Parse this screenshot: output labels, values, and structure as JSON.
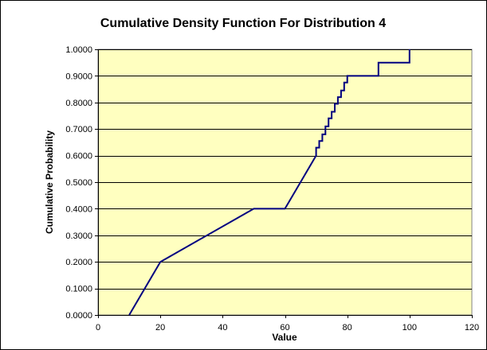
{
  "chart_data": {
    "type": "line",
    "title": "Cumulative Density Function For Distribution 4",
    "xlabel": "Value",
    "ylabel": "Cumulative Probability",
    "xlim": [
      0,
      120
    ],
    "ylim": [
      0,
      1
    ],
    "x_ticks": [
      0,
      20,
      40,
      60,
      80,
      100,
      120
    ],
    "x_tick_labels": [
      "0",
      "20",
      "40",
      "60",
      "80",
      "100",
      "120"
    ],
    "y_ticks": [
      0,
      0.1,
      0.2,
      0.3,
      0.4,
      0.5,
      0.6,
      0.7,
      0.8,
      0.9,
      1.0
    ],
    "y_tick_labels": [
      "0.0000",
      "0.1000",
      "0.2000",
      "0.3000",
      "0.4000",
      "0.5000",
      "0.6000",
      "0.7000",
      "0.8000",
      "0.9000",
      "1.0000"
    ],
    "grid": "horizontal",
    "legend": "none",
    "plot_background": "#FFFFC0",
    "line_color": "#000080",
    "series": [
      {
        "points": [
          [
            10,
            0
          ],
          [
            20,
            0.2
          ],
          [
            50,
            0.4
          ],
          [
            60,
            0.4
          ],
          [
            70,
            0.6
          ],
          [
            70,
            0.63
          ],
          [
            71,
            0.63
          ],
          [
            71,
            0.655
          ],
          [
            72,
            0.655
          ],
          [
            72,
            0.68
          ],
          [
            73,
            0.68
          ],
          [
            73,
            0.71
          ],
          [
            74,
            0.71
          ],
          [
            74,
            0.74
          ],
          [
            75,
            0.74
          ],
          [
            75,
            0.765
          ],
          [
            76,
            0.765
          ],
          [
            76,
            0.795
          ],
          [
            77,
            0.795
          ],
          [
            77,
            0.82
          ],
          [
            78,
            0.82
          ],
          [
            78,
            0.845
          ],
          [
            79,
            0.845
          ],
          [
            79,
            0.875
          ],
          [
            80,
            0.875
          ],
          [
            80,
            0.9
          ],
          [
            90,
            0.9
          ],
          [
            90,
            0.95
          ],
          [
            100,
            0.95
          ],
          [
            100,
            1.0
          ]
        ]
      }
    ]
  }
}
